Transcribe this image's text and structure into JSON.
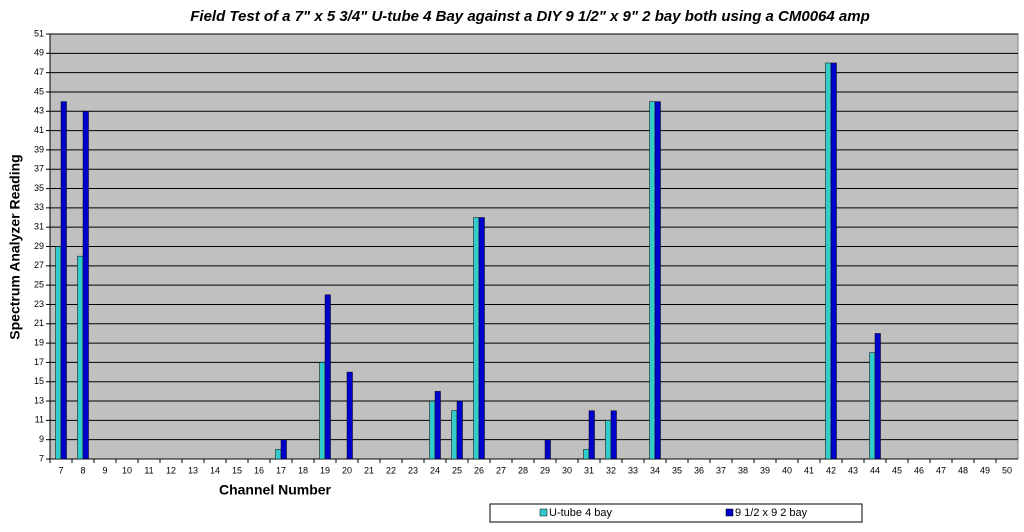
{
  "chart_data": {
    "type": "bar",
    "title": "Field Test of a 7\" x 5 3/4\" U-tube 4 Bay against a DIY 9 1/2\" x 9\" 2 bay both using a CM0064 amp",
    "x_label": "Channel Number",
    "y_label": "Spectrum Analyzer Reading",
    "categories": [
      7,
      8,
      9,
      10,
      11,
      12,
      13,
      14,
      15,
      16,
      17,
      18,
      19,
      20,
      21,
      22,
      23,
      24,
      25,
      26,
      27,
      28,
      29,
      30,
      31,
      32,
      33,
      34,
      35,
      36,
      37,
      38,
      39,
      40,
      41,
      42,
      43,
      44,
      45,
      46,
      47,
      48,
      49,
      50
    ],
    "series": [
      {
        "name": "U-tube 4 bay",
        "color": "#33cccc",
        "values": [
          29,
          28,
          null,
          null,
          null,
          null,
          null,
          null,
          null,
          null,
          8,
          null,
          17,
          null,
          null,
          null,
          null,
          13,
          12,
          32,
          null,
          null,
          null,
          null,
          8,
          11,
          null,
          44,
          null,
          null,
          null,
          null,
          null,
          null,
          null,
          48,
          null,
          18,
          null,
          null,
          null,
          null,
          null,
          null
        ]
      },
      {
        "name": "9 1/2 x 9 2 bay",
        "color": "#0000cc",
        "values": [
          44,
          43,
          null,
          null,
          null,
          null,
          null,
          null,
          null,
          null,
          9,
          null,
          24,
          16,
          null,
          null,
          null,
          14,
          13,
          32,
          null,
          null,
          9,
          null,
          12,
          12,
          null,
          44,
          null,
          null,
          null,
          null,
          null,
          null,
          null,
          48,
          null,
          20,
          null,
          null,
          null,
          null,
          null,
          null
        ]
      }
    ],
    "ylim": [
      7,
      51
    ],
    "yticks": [
      7,
      9,
      11,
      13,
      15,
      17,
      19,
      21,
      23,
      25,
      27,
      29,
      31,
      33,
      35,
      37,
      39,
      41,
      43,
      45,
      47,
      49,
      51
    ],
    "grid": true,
    "plot_background": "#c0c0c0",
    "legend": "bottom"
  }
}
